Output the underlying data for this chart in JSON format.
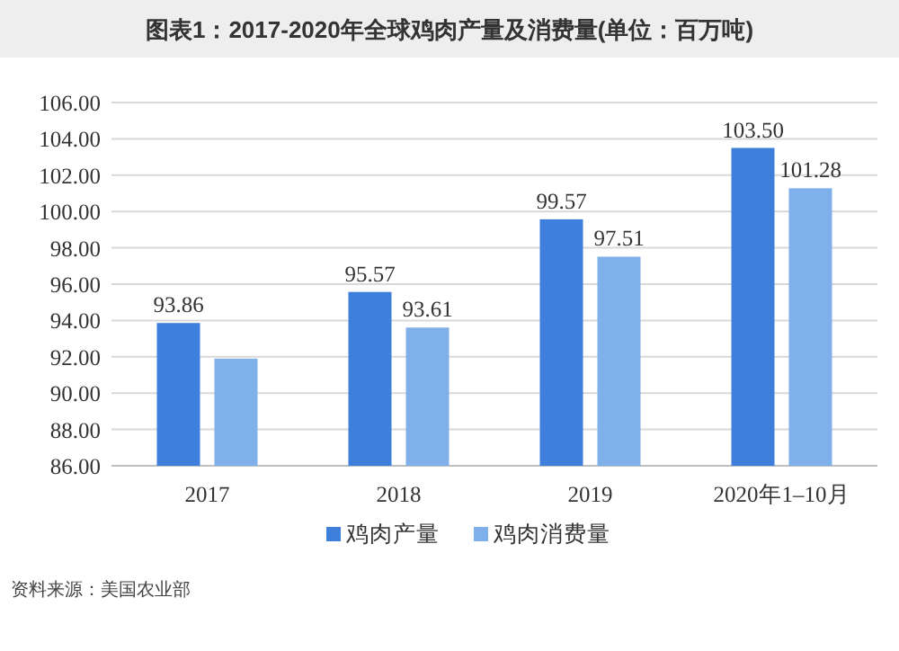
{
  "chart_data": {
    "type": "bar",
    "title": "图表1：2017-2020年全球鸡肉产量及消费量(单位：百万吨)",
    "categories": [
      "2017",
      "2018",
      "2019",
      "2020年1–10月"
    ],
    "series": [
      {
        "name": "鸡肉产量",
        "color": "#3f7fdc",
        "values": [
          93.86,
          95.57,
          99.57,
          103.5
        ],
        "value_labels": [
          "93.86",
          "95.57",
          "99.57",
          "103.50"
        ]
      },
      {
        "name": "鸡肉消费量",
        "color": "#7fb0ea",
        "values": [
          91.9,
          93.61,
          97.51,
          101.28
        ],
        "value_labels": [
          null,
          "93.61",
          "97.51",
          "101.28"
        ]
      }
    ],
    "ylim": [
      86,
      106
    ],
    "yticks": [
      {
        "value": 86,
        "label": "86.00"
      },
      {
        "value": 88,
        "label": "88.00"
      },
      {
        "value": 90,
        "label": "90.00"
      },
      {
        "value": 92,
        "label": "92.00"
      },
      {
        "value": 94,
        "label": "94.00"
      },
      {
        "value": 96,
        "label": "96.00"
      },
      {
        "value": 98,
        "label": "98.00"
      },
      {
        "value": 100,
        "label": "100.00"
      },
      {
        "value": 102,
        "label": "102.00"
      },
      {
        "value": 104,
        "label": "104.00"
      },
      {
        "value": 106,
        "label": "106.00"
      }
    ],
    "grid": "y",
    "legend": "bottom",
    "annotations": [
      "资料来源：美国农业部"
    ]
  }
}
